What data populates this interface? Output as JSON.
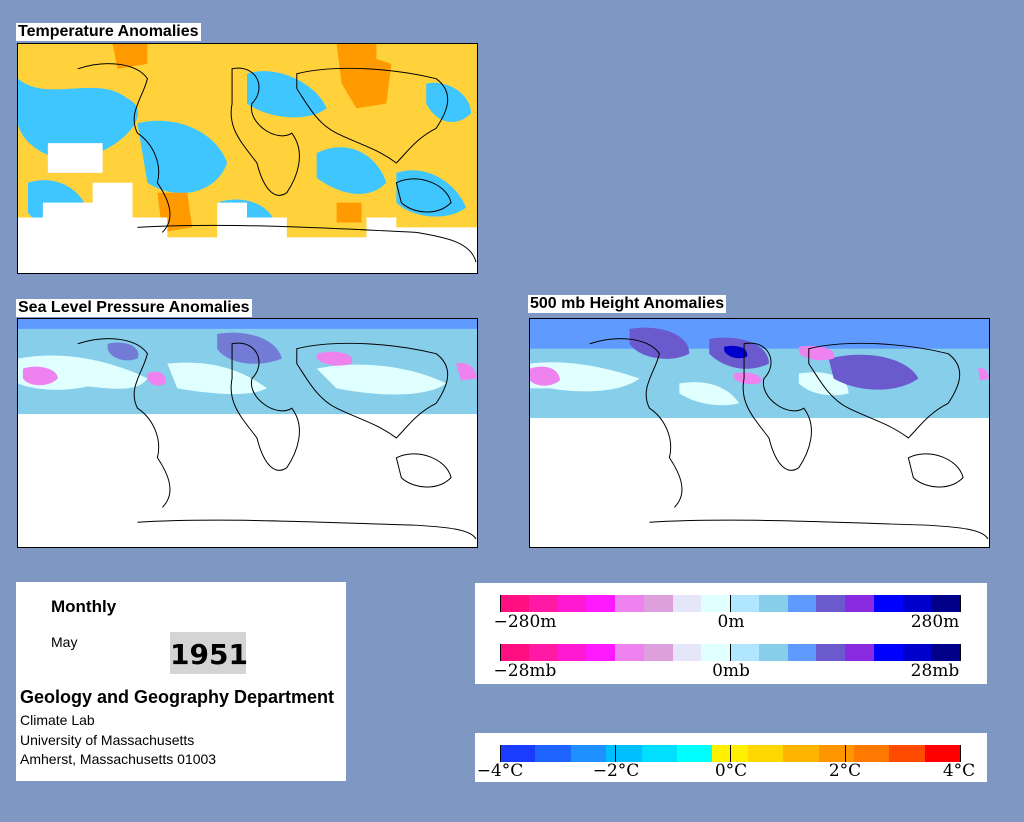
{
  "panels": {
    "temperature": {
      "title": "Temperature Anomalies"
    },
    "slp": {
      "title": "Sea Level Pressure Anomalies"
    },
    "height": {
      "title": "500 mb Height Anomalies"
    }
  },
  "info": {
    "period": "Monthly",
    "month": "May",
    "year": "1951",
    "department": "Geology and Geography Department",
    "lines": [
      "Climate Lab",
      "University of Massachusetts",
      "Amherst, Massachusetts 01003"
    ]
  },
  "legends": {
    "height": {
      "labels": [
        "−280m",
        "0m",
        "280m"
      ]
    },
    "pressure": {
      "labels": [
        "−28mb",
        "0mb",
        "28mb"
      ]
    },
    "temperature": {
      "labels": [
        "−4°C",
        "−2°C",
        "0°C",
        "2°C",
        "4°C"
      ]
    }
  },
  "colors": {
    "pressure_scale": [
      "#ff0f7f",
      "#ff19a5",
      "#ff19d2",
      "#ff19ff",
      "#ee82ee",
      "#dda0dd",
      "#e6e6fa",
      "#e0ffff",
      "#b0e6ff",
      "#87ceeb",
      "#5f9bff",
      "#6a5acd",
      "#8a2be2",
      "#0000ff",
      "#0000cd",
      "#00008b"
    ],
    "temperature_scale": [
      "#1a3cff",
      "#1e64ff",
      "#1e90ff",
      "#00bfff",
      "#00dfff",
      "#00ffff",
      "#fff000",
      "#ffd700",
      "#ffb400",
      "#ff9600",
      "#ff7800",
      "#ff4b00",
      "#ff0000"
    ],
    "background": "#7f98c3"
  }
}
